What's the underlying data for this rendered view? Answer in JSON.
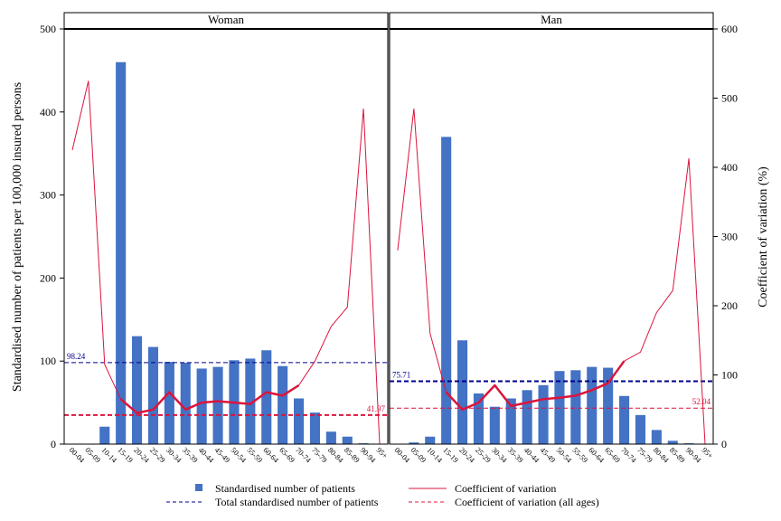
{
  "chart_data": {
    "type": "bar",
    "ylabel_left": "Standardised number of patients per 100,000 insured persons",
    "ylabel_right": "Coefficient of variation (%)",
    "ylim_left": [
      0,
      500
    ],
    "ylim_right": [
      0,
      600
    ],
    "yticks_left": [
      "0",
      "100",
      "200",
      "300",
      "400",
      "500"
    ],
    "yticks_right": [
      "0",
      "100",
      "200",
      "300",
      "400",
      "500",
      "600"
    ],
    "grid": false,
    "legend_position": "bottom",
    "colors": {
      "bar": "#4472c4",
      "cv_line": "#dc143c",
      "total_line": "#00008b",
      "cv_all_line": "#dc143c"
    },
    "categories": [
      "00-04",
      "05-09",
      "10-14",
      "15-19",
      "20-24",
      "25-29",
      "30-34",
      "35-39",
      "40-44",
      "45-49",
      "50-54",
      "55-59",
      "60-64",
      "65-69",
      "70-74",
      "75-79",
      "80-84",
      "85-89",
      "90-94",
      "95+"
    ],
    "panels": [
      {
        "title": "Woman",
        "bar_values": [
          0,
          0,
          21,
          460,
          130,
          117,
          99,
          98,
          91,
          93,
          101,
          103,
          113,
          94,
          55,
          38,
          15,
          9,
          1,
          0
        ],
        "cv_values": [
          425,
          525,
          115,
          65,
          45,
          50,
          75,
          50,
          60,
          62,
          60,
          58,
          75,
          70,
          85,
          120,
          170,
          198,
          485,
          0
        ],
        "cv_bold_range": [
          3,
          14
        ],
        "total_value": 98.24,
        "total_label": "98.24",
        "cv_all_value": 41.97,
        "cv_all_label": "41.97"
      },
      {
        "title": "Man",
        "bar_values": [
          0,
          2,
          9,
          370,
          125,
          61,
          45,
          55,
          65,
          71,
          88,
          89,
          93,
          92,
          58,
          35,
          17,
          4,
          1,
          0
        ],
        "cv_values": [
          280,
          485,
          160,
          75,
          50,
          60,
          85,
          55,
          60,
          65,
          67,
          70,
          78,
          88,
          120,
          133,
          190,
          222,
          413,
          0
        ],
        "cv_bold_range": [
          3,
          14
        ],
        "total_value": 75.71,
        "total_label": "75.71",
        "cv_all_value": 52.04,
        "cv_all_label": "52.04"
      }
    ],
    "legend": [
      {
        "key": "bar",
        "label": "Standardised number of patients"
      },
      {
        "key": "cv",
        "label": "Coefficient of variation"
      },
      {
        "key": "total",
        "label": "Total standardised number of patients"
      },
      {
        "key": "cv_all",
        "label": "Coefficient of variation (all ages)"
      }
    ]
  }
}
